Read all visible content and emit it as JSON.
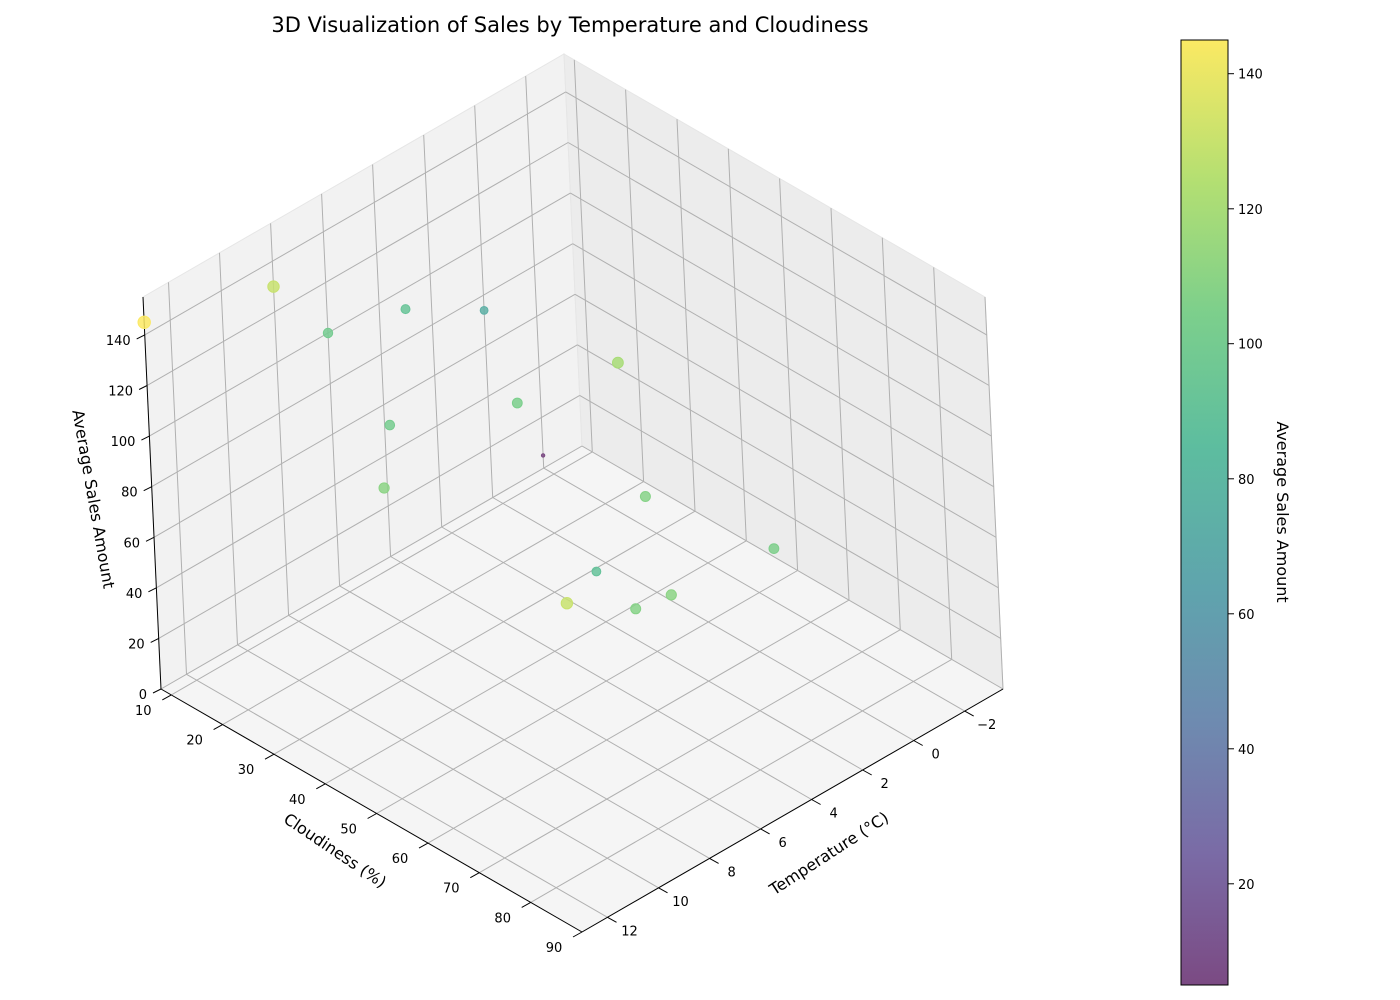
{
  "chart_data": {
    "type": "scatter",
    "title": "3D Visualization of Sales by Temperature and Cloudiness",
    "xlabel": "Temperature (°C)",
    "ylabel": "Cloudiness (%)",
    "zlabel": "Average Sales Amount",
    "colorbar_label": "Average Sales Amount",
    "colormap": "viridis",
    "grid": true,
    "x_ticks": [
      -2,
      0,
      2,
      4,
      6,
      8,
      10,
      12
    ],
    "y_ticks": [
      10,
      20,
      30,
      40,
      50,
      60,
      70,
      80,
      90
    ],
    "z_ticks": [
      0,
      20,
      40,
      60,
      80,
      100,
      120,
      140
    ],
    "colorbar_ticks": [
      20,
      40,
      60,
      80,
      100,
      120,
      140
    ],
    "xlim": [
      -3.5,
      13
    ],
    "ylim": [
      8,
      90
    ],
    "zlim": [
      0,
      155
    ],
    "clim": [
      5,
      145
    ],
    "points": [
      {
        "x": -2,
        "y": 8,
        "z": 5
      },
      {
        "x": 13,
        "y": 8,
        "z": 145
      },
      {
        "x": 6,
        "y": 8,
        "z": 100
      },
      {
        "x": 8,
        "y": 8,
        "z": 130
      },
      {
        "x": 3,
        "y": 8,
        "z": 92
      },
      {
        "x": 0,
        "y": 8,
        "z": 74
      },
      {
        "x": 5,
        "y": 90,
        "z": 105
      },
      {
        "x": 9,
        "y": 90,
        "z": 110
      },
      {
        "x": 13,
        "y": 90,
        "z": 130
      },
      {
        "x": 5,
        "y": 40,
        "z": 104
      },
      {
        "x": 6,
        "y": 70,
        "z": 108
      },
      {
        "x": 3,
        "y": 50,
        "z": 120
      },
      {
        "x": 8,
        "y": 30,
        "z": 101
      },
      {
        "x": 11,
        "y": 44,
        "z": 110
      },
      {
        "x": 10,
        "y": 88,
        "z": 108
      },
      {
        "x": 8,
        "y": 70,
        "z": 90
      }
    ]
  }
}
